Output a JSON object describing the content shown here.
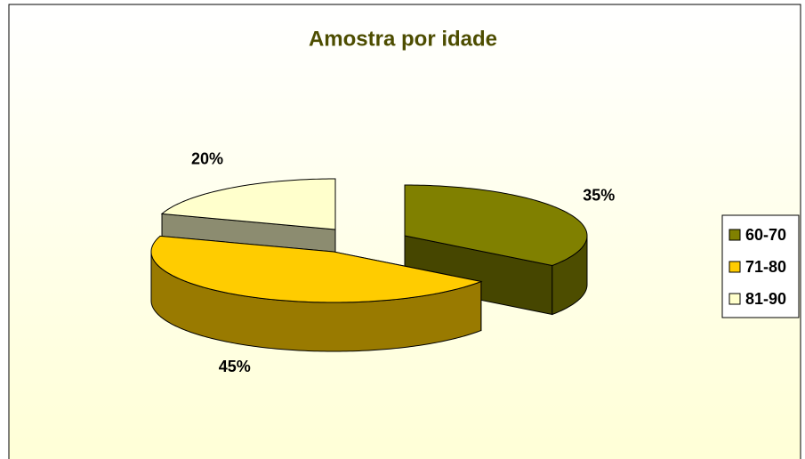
{
  "chart_data": {
    "type": "pie",
    "title": "Amostra por idade",
    "categories": [
      "60-70",
      "71-80",
      "81-90"
    ],
    "values": [
      35,
      45,
      20
    ],
    "value_labels": [
      "35%",
      "45%",
      "20%"
    ],
    "colors": [
      "#808000",
      "#ffcc00",
      "#ffffcc"
    ],
    "legend": "right"
  }
}
